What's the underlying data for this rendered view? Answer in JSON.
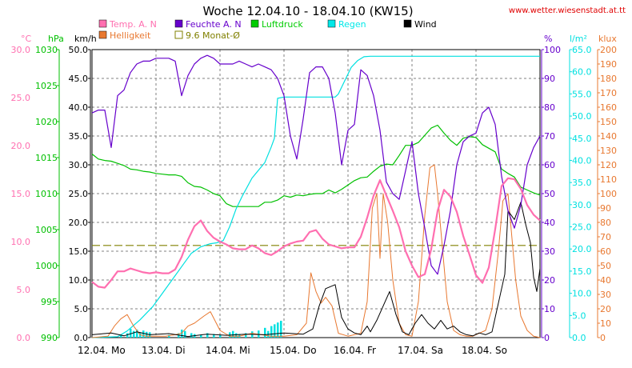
{
  "chart_data": {
    "type": "line",
    "title": "Woche 12.04.10 - 18.04.10 (KW15)",
    "source": "www.wetter.wiesenstadt.at.tt",
    "x_labels": [
      "12.04.  Mo",
      "13.04.  Di",
      "14.04.  Mi",
      "15.04.  Do",
      "16.04.  Fr",
      "17.04.  Sa",
      "18.04.  So"
    ],
    "x_range_days": [
      0,
      7
    ],
    "grid": true,
    "axes": {
      "temp": {
        "label": "°C",
        "color": "#ff6fb0",
        "range": [
          0,
          30
        ],
        "ticks": [
          "0.0",
          "5.0",
          "10.0",
          "15.0",
          "20.0",
          "25.0",
          "30.0"
        ]
      },
      "pressure": {
        "label": "hPa",
        "color": "#00c000",
        "range": [
          990,
          1030
        ],
        "ticks": [
          "990",
          "995",
          "1000",
          "1005",
          "1010",
          "1015",
          "1020",
          "1025",
          "1030"
        ]
      },
      "wind": {
        "label": "km/h",
        "color": "#000000",
        "range": [
          0,
          50
        ],
        "ticks": [
          "0.0",
          "5.0",
          "10.0",
          "15.0",
          "20.0",
          "25.0",
          "30.0",
          "35.0",
          "40.0",
          "45.0",
          "50.0"
        ]
      },
      "humidity": {
        "label": "%",
        "color": "#6600cc",
        "range": [
          0,
          100
        ],
        "ticks": [
          "0",
          "10",
          "20",
          "30",
          "40",
          "50",
          "60",
          "70",
          "80",
          "90",
          "100"
        ]
      },
      "rain": {
        "label": "l/m²",
        "color": "#00e0e0",
        "range": [
          0,
          65
        ],
        "ticks": [
          "0.0",
          "5.0",
          "10.0",
          "15.0",
          "20.0",
          "25.0",
          "30.0",
          "35.0",
          "40.0",
          "45.0",
          "50.0",
          "55.0",
          "60.0",
          "65.0"
        ]
      },
      "brightness": {
        "label": "klux",
        "color": "#e87830",
        "range": [
          0,
          200
        ],
        "ticks": [
          "0",
          "10",
          "20",
          "30",
          "40",
          "50",
          "60",
          "70",
          "80",
          "90",
          "100",
          "110",
          "120",
          "130",
          "140",
          "150",
          "160",
          "170",
          "180",
          "190",
          "200"
        ]
      }
    },
    "legend": [
      {
        "name": "Temp. A. N",
        "color": "#ff6fb0",
        "style": "filled"
      },
      {
        "name": "Feuchte A. N",
        "color": "#6600cc",
        "style": "filled"
      },
      {
        "name": "Luftdruck",
        "color": "#00cc00",
        "style": "filled"
      },
      {
        "name": "Regen",
        "color": "#00e8e8",
        "style": "filled"
      },
      {
        "name": "Wind",
        "color": "#000000",
        "style": "filled"
      },
      {
        "name": "Helligkeit",
        "color": "#e87830",
        "style": "filled"
      },
      {
        "name": "9.6 Monat-Ø",
        "color": "#808000",
        "style": "outline"
      }
    ],
    "monthly_avg_temp": 9.6,
    "series": [
      {
        "name": "Temp. A. N",
        "axis": "temp",
        "color": "#ff6fb0",
        "width": 2.2,
        "x": [
          0,
          0.1,
          0.2,
          0.3,
          0.4,
          0.5,
          0.6,
          0.7,
          0.8,
          0.9,
          1.0,
          1.1,
          1.2,
          1.3,
          1.4,
          1.5,
          1.6,
          1.7,
          1.8,
          1.9,
          2.0,
          2.1,
          2.2,
          2.3,
          2.4,
          2.5,
          2.6,
          2.7,
          2.8,
          2.9,
          3.0,
          3.1,
          3.2,
          3.3,
          3.4,
          3.5,
          3.6,
          3.7,
          3.8,
          3.9,
          4.0,
          4.1,
          4.2,
          4.3,
          4.4,
          4.5,
          4.6,
          4.7,
          4.8,
          4.9,
          5.0,
          5.1,
          5.2,
          5.3,
          5.4,
          5.5,
          5.6,
          5.7,
          5.8,
          5.9,
          6.0,
          6.1,
          6.2,
          6.3,
          6.4,
          6.5,
          6.6,
          6.7,
          6.8,
          6.9,
          7.0
        ],
        "y": [
          5.8,
          5.3,
          5.2,
          6.0,
          6.9,
          6.9,
          7.2,
          7.0,
          6.8,
          6.7,
          6.8,
          6.7,
          6.7,
          7.1,
          8.4,
          10.2,
          11.6,
          12.2,
          11.1,
          10.4,
          10.0,
          9.7,
          9.3,
          9.2,
          9.2,
          9.6,
          9.3,
          8.8,
          8.6,
          9.0,
          9.5,
          9.8,
          10.0,
          10.1,
          11.0,
          11.2,
          10.3,
          9.7,
          9.5,
          9.3,
          9.4,
          9.4,
          10.5,
          12.5,
          14.8,
          16.4,
          14.8,
          13.2,
          11.5,
          9.0,
          7.5,
          6.3,
          6.6,
          9.2,
          13.2,
          15.4,
          14.7,
          13.1,
          10.6,
          8.6,
          6.5,
          5.7,
          7.3,
          11.3,
          15.8,
          16.6,
          16.5,
          15.5,
          13.8,
          12.8,
          12.2
        ]
      },
      {
        "name": "Luftdruck",
        "axis": "pressure",
        "color": "#00c000",
        "width": 1.2,
        "x": [
          0,
          0.1,
          0.2,
          0.3,
          0.4,
          0.5,
          0.6,
          0.7,
          0.8,
          0.9,
          1.0,
          1.1,
          1.2,
          1.3,
          1.4,
          1.5,
          1.6,
          1.7,
          1.8,
          1.9,
          2.0,
          2.1,
          2.2,
          2.3,
          2.4,
          2.5,
          2.6,
          2.7,
          2.8,
          2.9,
          3.0,
          3.1,
          3.2,
          3.3,
          3.4,
          3.5,
          3.6,
          3.7,
          3.8,
          3.9,
          4.0,
          4.1,
          4.2,
          4.3,
          4.4,
          4.5,
          4.6,
          4.7,
          4.8,
          4.9,
          5.0,
          5.1,
          5.2,
          5.3,
          5.4,
          5.5,
          5.6,
          5.7,
          5.8,
          5.9,
          6.0,
          6.1,
          6.2,
          6.3,
          6.4,
          6.5,
          6.6,
          6.7,
          6.8,
          6.9,
          7.0
        ],
        "y": [
          1015.5,
          1014.8,
          1014.6,
          1014.5,
          1014.2,
          1013.9,
          1013.4,
          1013.3,
          1013.1,
          1013.0,
          1012.8,
          1012.7,
          1012.6,
          1012.6,
          1012.4,
          1011.5,
          1011.0,
          1010.9,
          1010.5,
          1010.0,
          1009.7,
          1008.6,
          1008.2,
          1008.2,
          1008.2,
          1008.2,
          1008.2,
          1008.8,
          1008.8,
          1009.1,
          1009.7,
          1009.5,
          1009.8,
          1009.7,
          1009.9,
          1010.0,
          1010.0,
          1010.5,
          1010.1,
          1010.6,
          1011.2,
          1011.8,
          1012.2,
          1012.3,
          1013.1,
          1013.8,
          1014.1,
          1014.0,
          1015.3,
          1016.7,
          1016.7,
          1017.1,
          1018.1,
          1019.1,
          1019.5,
          1018.4,
          1017.4,
          1016.7,
          1017.7,
          1017.9,
          1017.8,
          1016.8,
          1016.3,
          1015.8,
          1013.4,
          1012.8,
          1012.3,
          1010.9,
          1010.5,
          1010.1,
          1009.8
        ]
      },
      {
        "name": "Feuchte A. N",
        "axis": "humidity",
        "color": "#6600cc",
        "width": 1.2,
        "x": [
          0,
          0.1,
          0.2,
          0.3,
          0.4,
          0.5,
          0.6,
          0.7,
          0.8,
          0.9,
          1.0,
          1.1,
          1.2,
          1.3,
          1.4,
          1.5,
          1.6,
          1.7,
          1.8,
          1.9,
          2.0,
          2.1,
          2.2,
          2.3,
          2.4,
          2.5,
          2.6,
          2.7,
          2.8,
          2.9,
          3.0,
          3.1,
          3.2,
          3.3,
          3.4,
          3.5,
          3.6,
          3.7,
          3.8,
          3.9,
          4.0,
          4.1,
          4.2,
          4.3,
          4.4,
          4.5,
          4.6,
          4.7,
          4.8,
          4.9,
          5.0,
          5.1,
          5.2,
          5.3,
          5.4,
          5.5,
          5.6,
          5.7,
          5.8,
          5.9,
          6.0,
          6.1,
          6.2,
          6.3,
          6.4,
          6.5,
          6.6,
          6.7,
          6.8,
          6.9,
          7.0
        ],
        "y": [
          78,
          79,
          79,
          66,
          84,
          86,
          92,
          95,
          96,
          96,
          97,
          97,
          97,
          96,
          84,
          91,
          95,
          97,
          98,
          97,
          95,
          95,
          95,
          96,
          95,
          94,
          95,
          94,
          93,
          90,
          84,
          70,
          62,
          76,
          92,
          94,
          94,
          90,
          78,
          60,
          72,
          74,
          93,
          91,
          84,
          72,
          54,
          50,
          48,
          58,
          68,
          50,
          38,
          25,
          22,
          32,
          44,
          60,
          68,
          70,
          71,
          78,
          80,
          74,
          56,
          44,
          38,
          46,
          60,
          66,
          70
        ]
      },
      {
        "name": "Regen",
        "axis": "rain",
        "color": "#00e0e0",
        "width": 1.2,
        "x": [
          0,
          0.4,
          0.55,
          0.75,
          0.95,
          1.1,
          1.25,
          1.45,
          1.55,
          1.7,
          1.85,
          1.95,
          2.05,
          2.15,
          2.25,
          2.35,
          2.5,
          2.7,
          2.8,
          2.85,
          2.9,
          3.0,
          3.3,
          3.6,
          3.8,
          3.85,
          3.95,
          4.05,
          4.15,
          4.25,
          4.35,
          7.0
        ],
        "y": [
          0,
          0.2,
          1.5,
          4,
          7,
          10,
          13,
          17,
          19,
          20.5,
          21.2,
          21.4,
          21.9,
          25,
          29,
          32,
          36,
          39.5,
          43,
          45,
          54,
          54.3,
          54.3,
          54.3,
          54.3,
          55,
          58,
          61,
          62.5,
          63.4,
          63.5,
          63.5
        ]
      },
      {
        "name": "Wind",
        "axis": "wind",
        "color": "#000000",
        "width": 1.0,
        "x": [
          0,
          0.3,
          0.5,
          0.7,
          0.9,
          1.2,
          1.5,
          1.8,
          2.1,
          2.4,
          2.7,
          3.0,
          3.3,
          3.45,
          3.55,
          3.65,
          3.8,
          3.9,
          4.0,
          4.1,
          4.2,
          4.3,
          4.35,
          4.45,
          4.55,
          4.65,
          4.75,
          4.85,
          4.95,
          5.05,
          5.15,
          5.25,
          5.35,
          5.45,
          5.55,
          5.65,
          5.75,
          5.85,
          5.95,
          6.05,
          6.15,
          6.25,
          6.35,
          6.45,
          6.5,
          6.6,
          6.7,
          6.78,
          6.85,
          6.9,
          6.95,
          7.0
        ],
        "y": [
          0.5,
          0.8,
          0.3,
          1.0,
          0.5,
          0.7,
          0.2,
          0.6,
          0.4,
          0.6,
          0.5,
          0.8,
          0.6,
          1.5,
          5.5,
          8.5,
          9.2,
          3.5,
          1.5,
          0.8,
          0.5,
          2.0,
          1.0,
          3.0,
          5.5,
          8.0,
          4.0,
          1.0,
          0.5,
          2.5,
          4.0,
          2.5,
          1.5,
          3.0,
          1.5,
          2.0,
          1.0,
          0.5,
          0.3,
          0.8,
          0.5,
          1.0,
          6.0,
          11.0,
          22.0,
          20.5,
          23.5,
          19.5,
          16.5,
          10.5,
          8.0,
          12.0
        ]
      },
      {
        "name": "Helligkeit",
        "axis": "brightness",
        "color": "#e87830",
        "width": 1.0,
        "x": [
          0,
          0.25,
          0.35,
          0.45,
          0.55,
          0.65,
          0.75,
          0.85,
          1.0,
          1.15,
          1.3,
          1.4,
          1.5,
          1.6,
          1.75,
          1.85,
          2.0,
          2.15,
          2.3,
          2.4,
          2.5,
          2.65,
          2.8,
          2.95,
          3.0,
          3.2,
          3.35,
          3.42,
          3.5,
          3.58,
          3.65,
          3.75,
          3.85,
          4.0,
          4.1,
          4.2,
          4.3,
          4.38,
          4.45,
          4.5,
          4.55,
          4.62,
          4.7,
          4.8,
          4.9,
          5.0,
          5.1,
          5.2,
          5.28,
          5.35,
          5.4,
          5.48,
          5.55,
          5.65,
          5.75,
          5.85,
          5.95,
          6.05,
          6.15,
          6.25,
          6.35,
          6.42,
          6.5,
          6.55,
          6.62,
          6.7,
          6.8,
          6.9,
          7.0
        ],
        "y": [
          0,
          1,
          8,
          13,
          16,
          8,
          2,
          1,
          1,
          1,
          2,
          3,
          8,
          10,
          15,
          18,
          5,
          1,
          1,
          2,
          3,
          2,
          1,
          1,
          1,
          2,
          10,
          45,
          32,
          24,
          28,
          22,
          3,
          1,
          2,
          3,
          25,
          90,
          100,
          55,
          100,
          80,
          40,
          10,
          2,
          1,
          25,
          85,
          118,
          120,
          100,
          60,
          25,
          5,
          2,
          1,
          1,
          3,
          5,
          20,
          60,
          95,
          100,
          75,
          40,
          15,
          5,
          1,
          0
        ]
      }
    ],
    "rain_bars_days": [
      {
        "x": 0.45,
        "rain": 0.5
      },
      {
        "x": 0.55,
        "rain": 1.0
      },
      {
        "x": 0.6,
        "rain": 2.0
      },
      {
        "x": 0.65,
        "rain": 1.5
      },
      {
        "x": 0.7,
        "rain": 1.8
      },
      {
        "x": 0.75,
        "rain": 1.2
      },
      {
        "x": 0.8,
        "rain": 1.6
      },
      {
        "x": 0.85,
        "rain": 1.3
      },
      {
        "x": 0.9,
        "rain": 1.2
      },
      {
        "x": 1.2,
        "rain": 0.6
      },
      {
        "x": 1.35,
        "rain": 1.0
      },
      {
        "x": 1.4,
        "rain": 1.8
      },
      {
        "x": 1.45,
        "rain": 1.5
      },
      {
        "x": 1.55,
        "rain": 1.0
      },
      {
        "x": 1.6,
        "rain": 0.8
      },
      {
        "x": 1.7,
        "rain": 0.6
      },
      {
        "x": 1.8,
        "rain": 1.0
      },
      {
        "x": 1.9,
        "rain": 0.8
      },
      {
        "x": 2.0,
        "rain": 0.6
      },
      {
        "x": 2.15,
        "rain": 1.2
      },
      {
        "x": 2.2,
        "rain": 1.5
      },
      {
        "x": 2.25,
        "rain": 1.0
      },
      {
        "x": 2.3,
        "rain": 0.8
      },
      {
        "x": 2.4,
        "rain": 1.0
      },
      {
        "x": 2.5,
        "rain": 1.4
      },
      {
        "x": 2.6,
        "rain": 1.6
      },
      {
        "x": 2.7,
        "rain": 2.2
      },
      {
        "x": 2.75,
        "rain": 1.5
      },
      {
        "x": 2.8,
        "rain": 2.6
      },
      {
        "x": 2.85,
        "rain": 3.0
      },
      {
        "x": 2.9,
        "rain": 3.4
      },
      {
        "x": 2.95,
        "rain": 3.8
      }
    ]
  }
}
